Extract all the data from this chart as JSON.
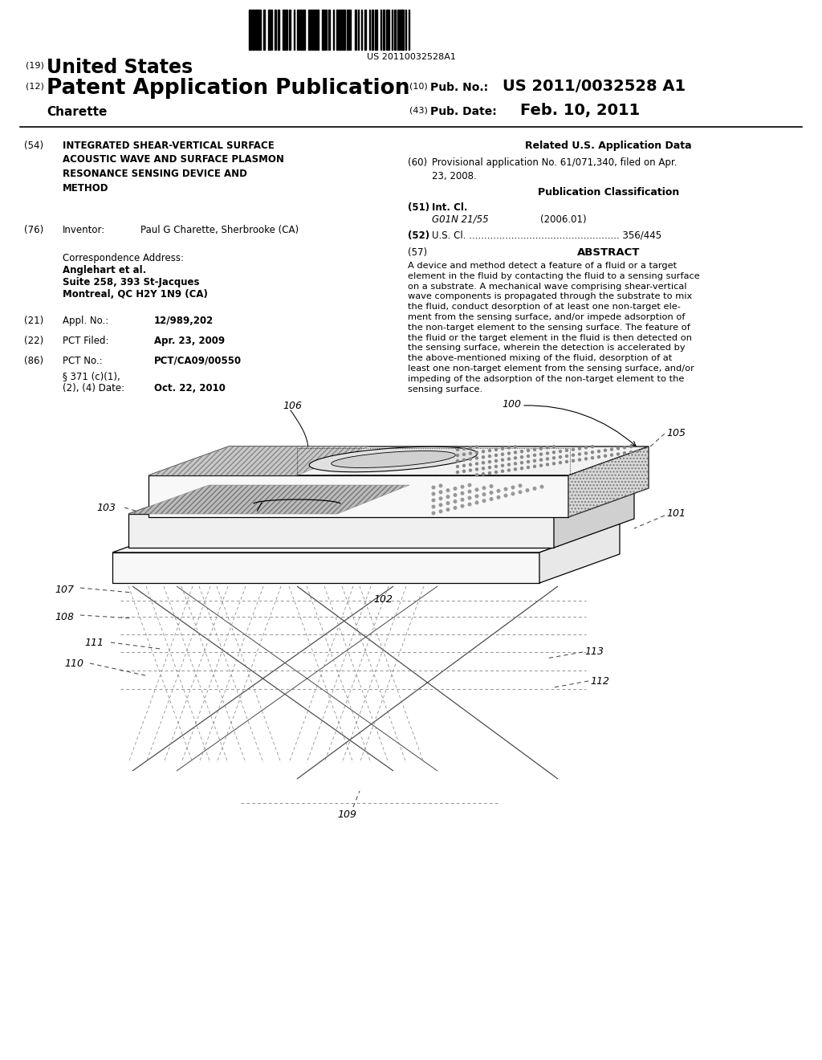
{
  "background_color": "#ffffff",
  "barcode_text": "US 20110032528A1",
  "header": {
    "number_19": "(19)",
    "united_states": "United States",
    "number_12": "(12)",
    "patent_app_pub": "Patent Application Publication",
    "inventor_name": "Charette",
    "number_10": "(10)",
    "pub_no_label": "Pub. No.:",
    "pub_no": "US 2011/0032528 A1",
    "number_43": "(43)",
    "pub_date_label": "Pub. Date:",
    "pub_date": "Feb. 10, 2011"
  },
  "left_col": {
    "item_54_label": "(54)",
    "item_54_title": "INTEGRATED SHEAR-VERTICAL SURFACE\nACOUSTIC WAVE AND SURFACE PLASMON\nRESONANCE SENSING DEVICE AND\nMETHOD",
    "item_76_label": "(76)",
    "item_76_inventor": "Inventor:",
    "item_76_name": "Paul G Charette, Sherbrooke (CA)",
    "corr_address_label": "Correspondence Address:",
    "corr_line1": "Anglehart et al.",
    "corr_line2": "Suite 258, 393 St-Jacques",
    "corr_line3": "Montreal, QC H2Y 1N9 (CA)",
    "item_21_label": "(21)",
    "item_21_appl": "Appl. No.:",
    "item_21_no": "12/989,202",
    "item_22_label": "(22)",
    "item_22_pct": "PCT Filed:",
    "item_22_date": "Apr. 23, 2009",
    "item_86_label": "(86)",
    "item_86_pct": "PCT No.:",
    "item_86_no": "PCT/CA09/00550",
    "item_86b_line1": "§ 371 (c)(1),",
    "item_86b_line2": "(2), (4) Date:",
    "item_86b_date": "Oct. 22, 2010"
  },
  "right_col": {
    "related_title": "Related U.S. Application Data",
    "item_60_label": "(60)",
    "item_60_text": "Provisional application No. 61/071,340, filed on Apr.\n23, 2008.",
    "pub_class_title": "Publication Classification",
    "item_51_label": "(51)",
    "item_51_intcl": "Int. Cl.",
    "item_51_class": "G01N 21/55",
    "item_51_year": "(2006.01)",
    "item_52_label": "(52)",
    "item_52_uscl": "U.S. Cl. .................................................. 356/445",
    "item_57_label": "(57)",
    "abstract_title": "ABSTRACT",
    "abstract_text": "A device and method detect a feature of a fluid or a target\nelement in the fluid by contacting the fluid to a sensing surface\non a substrate. A mechanical wave comprising shear-vertical\nwave components is propagated through the substrate to mix\nthe fluid, conduct desorption of at least one non-target ele-\nment from the sensing surface, and/or impede adsorption of\nthe non-target element to the sensing surface. The feature of\nthe fluid or the target element in the fluid is then detected on\nthe sensing surface, wherein the detection is accelerated by\nthe above-mentioned mixing of the fluid, desorption of at\nleast one non-target element from the sensing surface, and/or\nimpeding of the adsorption of the non-target element to the\nsensing surface."
  }
}
